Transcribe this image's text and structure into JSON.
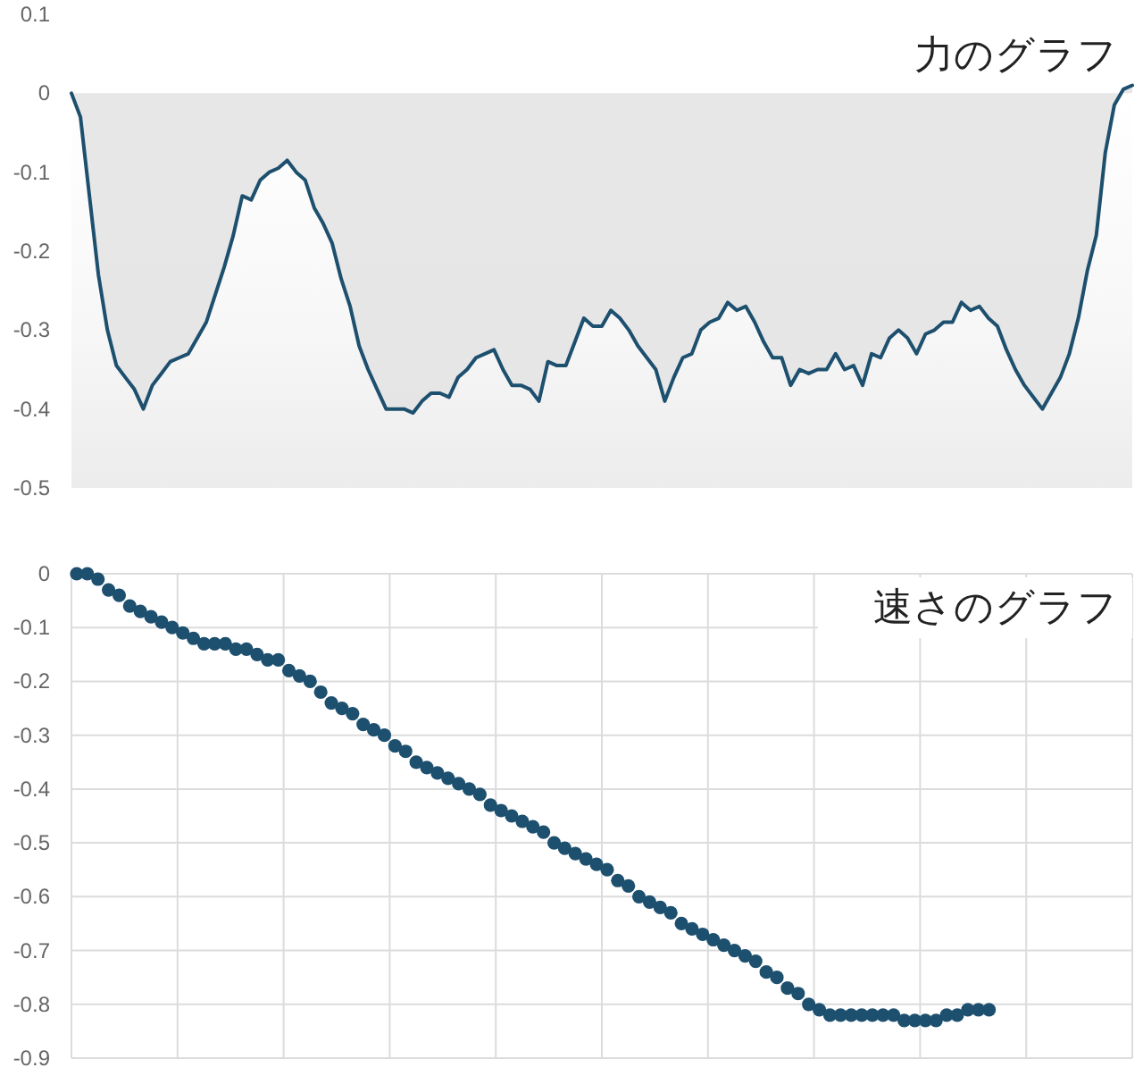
{
  "chart_data": [
    {
      "type": "area",
      "title": "力のグラフ",
      "categories": [
        null,
        null,
        null,
        null,
        null,
        null,
        null,
        null,
        null,
        null,
        null,
        null,
        null,
        null,
        null,
        null,
        null,
        null,
        null,
        null,
        null,
        null,
        null,
        null,
        null,
        null,
        null,
        null,
        null,
        null,
        null,
        null,
        null,
        null,
        null,
        null,
        null,
        null,
        null,
        null,
        null,
        null,
        null,
        null,
        null,
        null,
        null,
        null,
        null,
        null,
        null,
        null,
        null,
        null,
        null,
        null,
        null,
        null,
        null,
        null,
        null,
        null,
        null,
        null,
        null,
        null,
        null,
        null,
        null,
        null,
        null,
        null,
        null,
        null,
        null,
        null,
        null,
        null,
        null,
        null,
        null,
        null,
        null,
        null,
        null,
        null,
        null,
        null,
        null,
        null,
        null,
        null,
        null,
        null,
        null,
        null,
        null,
        null,
        null,
        null,
        null,
        null,
        null,
        null,
        null,
        null,
        null,
        null,
        null,
        null,
        null,
        null,
        null,
        null,
        null,
        null,
        null,
        null,
        null
      ],
      "series": [
        {
          "color": "#1d4f6e",
          "values": [
            0,
            -0.03,
            -0.13,
            -0.23,
            -0.3,
            -0.345,
            -0.36,
            -0.375,
            -0.4,
            -0.37,
            -0.355,
            -0.34,
            -0.335,
            -0.33,
            -0.31,
            -0.29,
            -0.255,
            -0.22,
            -0.18,
            -0.13,
            -0.135,
            -0.11,
            -0.1,
            -0.095,
            -0.085,
            -0.1,
            -0.11,
            -0.145,
            -0.165,
            -0.19,
            -0.235,
            -0.27,
            -0.32,
            -0.35,
            -0.375,
            -0.4,
            -0.4,
            -0.4,
            -0.405,
            -0.39,
            -0.38,
            -0.38,
            -0.385,
            -0.36,
            -0.35,
            -0.335,
            -0.33,
            -0.325,
            -0.35,
            -0.37,
            -0.37,
            -0.375,
            -0.39,
            -0.34,
            -0.345,
            -0.345,
            -0.315,
            -0.285,
            -0.295,
            -0.295,
            -0.275,
            -0.285,
            -0.3,
            -0.32,
            -0.335,
            -0.35,
            -0.39,
            -0.36,
            -0.335,
            -0.33,
            -0.3,
            -0.29,
            -0.285,
            -0.265,
            -0.275,
            -0.27,
            -0.29,
            -0.315,
            -0.335,
            -0.335,
            -0.37,
            -0.35,
            -0.355,
            -0.35,
            -0.35,
            -0.33,
            -0.35,
            -0.345,
            -0.37,
            -0.33,
            -0.335,
            -0.31,
            -0.3,
            -0.31,
            -0.33,
            -0.305,
            -0.3,
            -0.29,
            -0.29,
            -0.265,
            -0.275,
            -0.27,
            -0.285,
            -0.295,
            -0.325,
            -0.35,
            -0.37,
            -0.385,
            -0.4,
            -0.38,
            -0.36,
            -0.33,
            -0.285,
            -0.225,
            -0.18,
            -0.075,
            -0.015,
            0.005,
            0.01
          ]
        }
      ],
      "ylim": [
        -0.5,
        0.1
      ],
      "yticks": [
        0.1,
        0,
        -0.1,
        -0.2,
        -0.3,
        -0.4,
        -0.5
      ]
    },
    {
      "type": "scatter",
      "title": "速さのグラフ",
      "categories": [
        null,
        null,
        null,
        null,
        null,
        null,
        null,
        null,
        null,
        null,
        null,
        null,
        null,
        null,
        null,
        null,
        null,
        null,
        null,
        null,
        null,
        null,
        null,
        null,
        null,
        null,
        null,
        null,
        null,
        null,
        null,
        null,
        null,
        null,
        null,
        null,
        null,
        null,
        null,
        null,
        null,
        null,
        null,
        null,
        null,
        null,
        null,
        null,
        null,
        null,
        null,
        null,
        null,
        null,
        null,
        null,
        null,
        null,
        null,
        null,
        null,
        null,
        null,
        null,
        null,
        null,
        null,
        null,
        null,
        null,
        null,
        null,
        null,
        null,
        null,
        null,
        null,
        null,
        null,
        null,
        null,
        null,
        null,
        null,
        null,
        null,
        null,
        null,
        null,
        null,
        null,
        null,
        null,
        null,
        null,
        null,
        null,
        null,
        null,
        null
      ],
      "series": [
        {
          "color": "#1d4f6e",
          "values": [
            0,
            0,
            -0.01,
            -0.03,
            -0.04,
            -0.06,
            -0.07,
            -0.08,
            -0.09,
            -0.1,
            -0.11,
            -0.12,
            -0.13,
            -0.13,
            -0.13,
            -0.14,
            -0.14,
            -0.15,
            -0.16,
            -0.16,
            -0.18,
            -0.19,
            -0.2,
            -0.22,
            -0.24,
            -0.25,
            -0.26,
            -0.28,
            -0.29,
            -0.3,
            -0.32,
            -0.33,
            -0.35,
            -0.36,
            -0.37,
            -0.38,
            -0.39,
            -0.4,
            -0.41,
            -0.43,
            -0.44,
            -0.45,
            -0.46,
            -0.47,
            -0.48,
            -0.5,
            -0.51,
            -0.52,
            -0.53,
            -0.54,
            -0.55,
            -0.57,
            -0.58,
            -0.6,
            -0.61,
            -0.62,
            -0.63,
            -0.65,
            -0.66,
            -0.67,
            -0.68,
            -0.69,
            -0.7,
            -0.71,
            -0.72,
            -0.74,
            -0.75,
            -0.77,
            -0.78,
            -0.8,
            -0.81,
            -0.82,
            -0.82,
            -0.82,
            -0.82,
            -0.82,
            -0.82,
            -0.82,
            -0.83,
            -0.83,
            -0.83,
            -0.83,
            -0.82,
            -0.82,
            -0.81,
            -0.81,
            -0.81,
            null,
            null,
            null,
            null,
            null,
            null,
            null,
            null,
            null,
            null,
            null,
            null,
            null
          ]
        }
      ],
      "ylim": [
        -0.9,
        0
      ],
      "yticks": [
        0,
        -0.1,
        -0.2,
        -0.3,
        -0.4,
        -0.5,
        -0.6,
        -0.7,
        -0.8,
        -0.9
      ],
      "grid": true,
      "marker": "circle"
    }
  ]
}
